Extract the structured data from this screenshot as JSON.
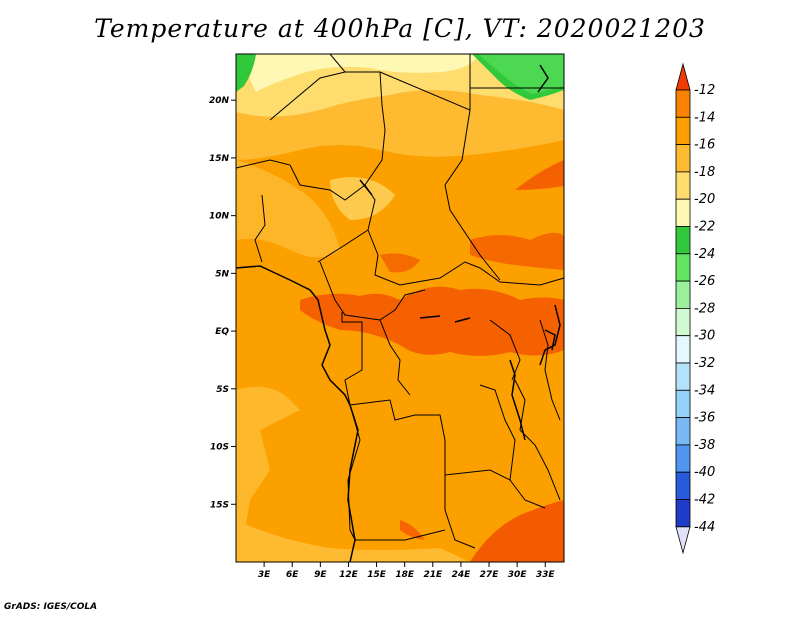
{
  "title": "Temperature at 400hPa [C], VT: 2020021203",
  "credit": "GrADS: IGES/COLA",
  "map": {
    "lat_labels": [
      "20N",
      "15N",
      "10N",
      "5N",
      "EQ",
      "5S",
      "10S",
      "15S"
    ],
    "lon_labels": [
      "3E",
      "6E",
      "9E",
      "12E",
      "15E",
      "18E",
      "21E",
      "24E",
      "27E",
      "30E",
      "33E"
    ],
    "lon_range": [
      0,
      35
    ],
    "lat_range": [
      -20,
      24
    ]
  },
  "colorbar": {
    "labels": [
      "-12",
      "-14",
      "-16",
      "-18",
      "-20",
      "-22",
      "-24",
      "-26",
      "-28",
      "-30",
      "-32",
      "-34",
      "-36",
      "-38",
      "-40",
      "-42",
      "-44"
    ],
    "colors": [
      "#f45a00",
      "#fa8200",
      "#fca000",
      "#feba30",
      "#fedc6e",
      "#fff7b4",
      "#32c83c",
      "#64e664",
      "#9cf09c",
      "#d2fad2",
      "#e6f8ff",
      "#b4e2fa",
      "#96d2fa",
      "#78b9f5",
      "#5096f0",
      "#285adc",
      "#1e3cc8",
      "#140a78"
    ],
    "top_color": "#f03c00",
    "bottom_color": "#e1e1fa"
  }
}
